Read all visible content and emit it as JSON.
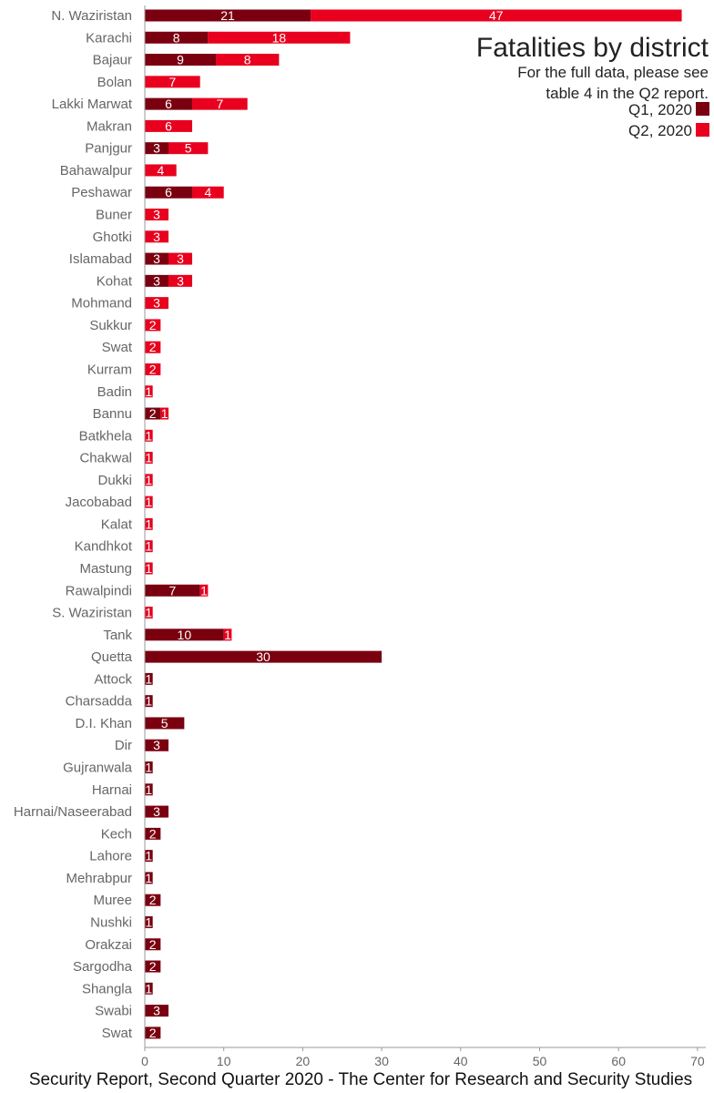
{
  "chart_data": {
    "type": "bar",
    "orientation": "horizontal",
    "stacked": true,
    "title": "Fatalities by district",
    "subtitle_lines": [
      "For the full data, please see",
      "table 4 in the Q2 report."
    ],
    "caption": "Security Report, Second Quarter 2020 - The Center for Research and Security Studies",
    "xlim": [
      0,
      70
    ],
    "xticks": [
      0,
      10,
      20,
      30,
      40,
      50,
      60,
      70
    ],
    "grid": false,
    "legend_position": "top-right",
    "categories": [
      "N. Waziristan",
      "Karachi",
      "Bajaur",
      "Bolan",
      "Lakki Marwat",
      "Makran",
      "Panjgur",
      "Bahawalpur",
      "Peshawar",
      "Buner",
      "Ghotki",
      "Islamabad",
      "Kohat",
      "Mohmand",
      "Sukkur",
      "Swat",
      "Kurram",
      "Badin",
      "Bannu",
      "Batkhela",
      "Chakwal",
      "Dukki",
      "Jacobabad",
      "Kalat",
      "Kandhkot",
      "Mastung",
      "Rawalpindi",
      "S. Waziristan",
      "Tank",
      "Quetta",
      "Attock",
      "Charsadda",
      "D.I. Khan",
      "Dir",
      "Gujranwala",
      "Harnai",
      "Harnai/Naseerabad",
      "Kech",
      "Lahore",
      "Mehrabpur",
      "Muree",
      "Nushki",
      "Orakzai",
      "Sargodha",
      "Shangla",
      "Swabi",
      "Swat"
    ],
    "series": [
      {
        "name": "Q1, 2020",
        "color": "#7a0010",
        "values": [
          21,
          8,
          9,
          0,
          6,
          0,
          3,
          0,
          6,
          0,
          0,
          3,
          3,
          0,
          0,
          0,
          0,
          0,
          2,
          0,
          0,
          0,
          0,
          0,
          0,
          0,
          7,
          0,
          10,
          30,
          1,
          1,
          5,
          3,
          1,
          1,
          3,
          2,
          1,
          1,
          2,
          1,
          2,
          2,
          1,
          3,
          2
        ]
      },
      {
        "name": "Q2, 2020",
        "color": "#e8001e",
        "values": [
          47,
          18,
          8,
          7,
          7,
          6,
          5,
          4,
          4,
          3,
          3,
          3,
          3,
          3,
          2,
          2,
          2,
          1,
          1,
          1,
          1,
          1,
          1,
          1,
          1,
          1,
          1,
          1,
          1,
          0,
          0,
          0,
          0,
          0,
          0,
          0,
          0,
          0,
          0,
          0,
          0,
          0,
          0,
          0,
          0,
          0,
          0
        ]
      }
    ]
  }
}
